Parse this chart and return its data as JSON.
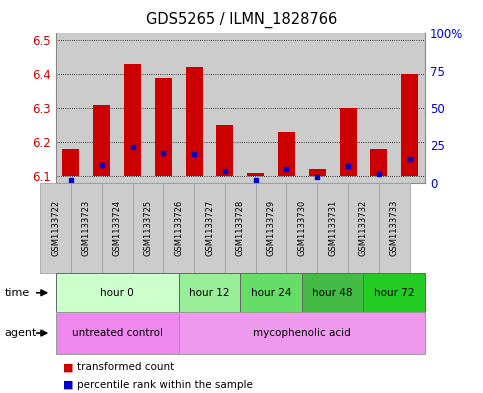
{
  "title": "GDS5265 / ILMN_1828766",
  "samples": [
    "GSM1133722",
    "GSM1133723",
    "GSM1133724",
    "GSM1133725",
    "GSM1133726",
    "GSM1133727",
    "GSM1133728",
    "GSM1133729",
    "GSM1133730",
    "GSM1133731",
    "GSM1133732",
    "GSM1133733"
  ],
  "transformed_count": [
    6.18,
    6.31,
    6.43,
    6.39,
    6.42,
    6.25,
    6.11,
    6.23,
    6.12,
    6.3,
    6.18,
    6.4
  ],
  "percentile_rank_pct": [
    2.0,
    12.0,
    24.0,
    20.0,
    19.0,
    8.0,
    2.0,
    9.0,
    4.0,
    11.0,
    6.0,
    16.0
  ],
  "baseline": 6.1,
  "ylim_left": [
    6.08,
    6.52
  ],
  "ylim_right": [
    0,
    100
  ],
  "yticks_left": [
    6.1,
    6.2,
    6.3,
    6.4,
    6.5
  ],
  "yticks_right": [
    0,
    25,
    50,
    75,
    100
  ],
  "ytick_right_labels": [
    "0",
    "25",
    "50",
    "75",
    "100%"
  ],
  "bar_color": "#cc0000",
  "percentile_color": "#0000cc",
  "bar_width": 0.55,
  "time_groups": [
    {
      "label": "hour 0",
      "samples": [
        0,
        1,
        2,
        3
      ],
      "color": "#ccffcc"
    },
    {
      "label": "hour 12",
      "samples": [
        4,
        5
      ],
      "color": "#99ee99"
    },
    {
      "label": "hour 24",
      "samples": [
        6,
        7
      ],
      "color": "#66dd66"
    },
    {
      "label": "hour 48",
      "samples": [
        8,
        9
      ],
      "color": "#44bb44"
    },
    {
      "label": "hour 72",
      "samples": [
        10,
        11
      ],
      "color": "#22cc22"
    }
  ],
  "agent_groups": [
    {
      "label": "untreated control",
      "samples": [
        0,
        1,
        2,
        3
      ],
      "color": "#ee88ee"
    },
    {
      "label": "mycophenolic acid",
      "samples": [
        4,
        5,
        6,
        7,
        8,
        9,
        10,
        11
      ],
      "color": "#ee99ee"
    }
  ],
  "legend_items": [
    {
      "label": "transformed count",
      "color": "#cc0000"
    },
    {
      "label": "percentile rank within the sample",
      "color": "#0000cc"
    }
  ],
  "axis_color_left": "#cc0000",
  "axis_color_right": "#0000cc",
  "sample_bg_color": "#cccccc",
  "plot_bg_color": "#ffffff",
  "border_color": "#888888"
}
